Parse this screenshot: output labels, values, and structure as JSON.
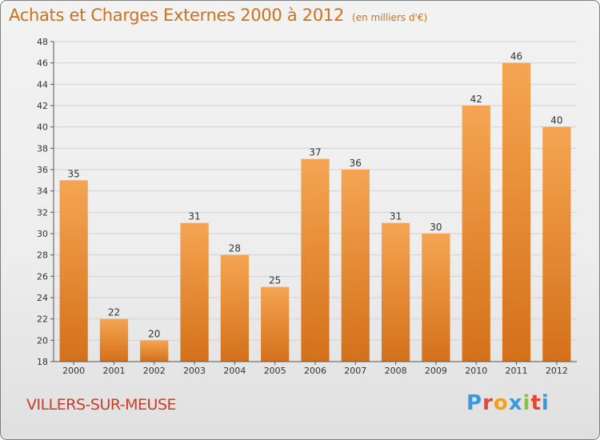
{
  "header": {
    "title": "Achats et Charges Externes 2000 à 2012",
    "unit": "(en milliers d'€)"
  },
  "place": "VILLERS-SUR-MEUSE",
  "logo": {
    "letters": [
      "P",
      "r",
      "o",
      "x",
      "i",
      "t",
      "i"
    ],
    "colors": [
      "#3a9ad9",
      "#e6452f",
      "#f0a21c",
      "#3a9ad9",
      "#8ac43f",
      "#e6452f",
      "#3a9ad9"
    ]
  },
  "colors": {
    "bar_light": "#f5a552",
    "bar_dark": "#d4701a",
    "title": "#d0701a",
    "place": "#cc3b2a"
  },
  "chart_data": {
    "type": "bar",
    "title": "Achats et Charges Externes 2000 à 2012",
    "subtitle": "(en milliers d'€)",
    "categories": [
      "2000",
      "2001",
      "2002",
      "2003",
      "2004",
      "2005",
      "2006",
      "2007",
      "2008",
      "2009",
      "2010",
      "2011",
      "2012"
    ],
    "values": [
      35,
      22,
      20,
      31,
      28,
      25,
      37,
      36,
      31,
      30,
      42,
      46,
      40
    ],
    "ylim": [
      18,
      48
    ],
    "yticks": [
      18,
      20,
      22,
      24,
      26,
      28,
      30,
      32,
      34,
      36,
      38,
      40,
      42,
      44,
      46,
      48
    ],
    "grid": "horizontal"
  }
}
